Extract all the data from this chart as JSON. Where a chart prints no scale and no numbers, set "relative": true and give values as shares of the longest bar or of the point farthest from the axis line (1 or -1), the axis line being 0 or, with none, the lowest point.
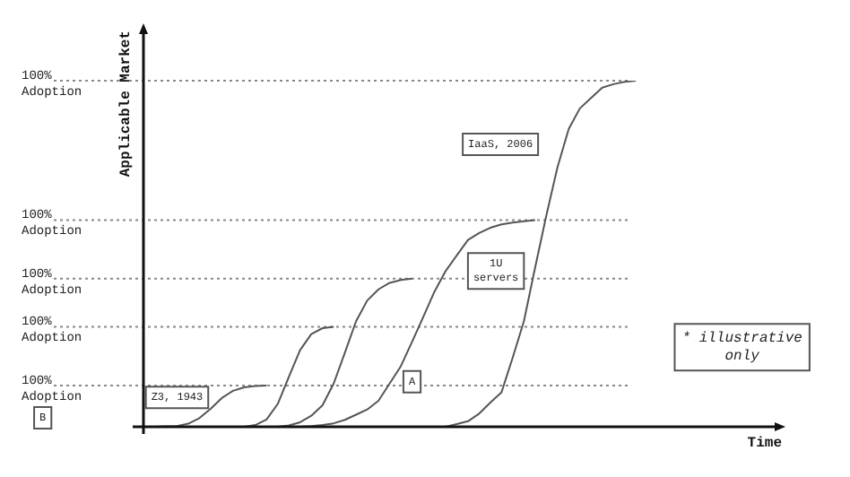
{
  "chart_data": {
    "type": "line",
    "relative": true,
    "xlabel": "Time",
    "ylabel": "Applicable Market",
    "legend": false,
    "marker": "none",
    "line_style": "solid",
    "categories": [
      null,
      null,
      null,
      null,
      null,
      null,
      null,
      null,
      null,
      null,
      null,
      null,
      null,
      null,
      null,
      null,
      null,
      null,
      null,
      null,
      null,
      null,
      null,
      null,
      null,
      null,
      null,
      null,
      null,
      null,
      null,
      null,
      null,
      null,
      null,
      null,
      null,
      null,
      null,
      null,
      null,
      null,
      null,
      null,
      null,
      null,
      null,
      null,
      null,
      null,
      null
    ],
    "series": [
      {
        "color": "#555555",
        "values": [
          null,
          0,
          0.001,
          0.002,
          0.009,
          0.025,
          0.052,
          0.083,
          0.104,
          0.114,
          0.118,
          0.119,
          null,
          null,
          null,
          null,
          null,
          null,
          null,
          null,
          null,
          null,
          null,
          null,
          null,
          null,
          null,
          null,
          null,
          null,
          null,
          null,
          null,
          null,
          null,
          null,
          null,
          null,
          null,
          null,
          null,
          null,
          null,
          null,
          null,
          null,
          null,
          null,
          null,
          null,
          null
        ]
      },
      {
        "color": "#555555",
        "values": [
          null,
          null,
          null,
          null,
          null,
          null,
          null,
          null,
          null,
          0,
          0.005,
          0.021,
          0.066,
          0.145,
          0.222,
          0.268,
          0.285,
          0.289,
          null,
          null,
          null,
          null,
          null,
          null,
          null,
          null,
          null,
          null,
          null,
          null,
          null,
          null,
          null,
          null,
          null,
          null,
          null,
          null,
          null,
          null,
          null,
          null,
          null,
          null,
          null,
          null,
          null,
          null,
          null,
          null,
          null
        ]
      },
      {
        "color": "#555555",
        "values": [
          null,
          null,
          null,
          null,
          null,
          null,
          null,
          null,
          null,
          null,
          null,
          null,
          0,
          0.004,
          0.013,
          0.032,
          0.062,
          0.125,
          0.214,
          0.305,
          0.365,
          0.397,
          0.416,
          0.424,
          0.428,
          null,
          null,
          null,
          null,
          null,
          null,
          null,
          null,
          null,
          null,
          null,
          null,
          null,
          null,
          null,
          null,
          null,
          null,
          null,
          null,
          null,
          null,
          null,
          null,
          null,
          null
        ]
      },
      {
        "color": "#555555",
        "values": [
          null,
          null,
          null,
          null,
          null,
          null,
          null,
          null,
          null,
          null,
          null,
          null,
          null,
          null,
          0,
          0.002,
          0.005,
          0.01,
          0.02,
          0.035,
          0.05,
          0.075,
          0.125,
          0.175,
          0.245,
          0.317,
          0.39,
          0.45,
          0.495,
          0.54,
          0.56,
          0.575,
          0.585,
          0.59,
          0.594,
          0.597,
          null,
          null,
          null,
          null,
          null,
          null,
          null,
          null,
          null,
          null,
          null,
          null,
          null,
          null,
          null
        ]
      },
      {
        "color": "#555555",
        "values": [
          null,
          null,
          null,
          null,
          null,
          null,
          null,
          null,
          null,
          null,
          null,
          null,
          null,
          null,
          null,
          null,
          null,
          null,
          null,
          null,
          null,
          null,
          null,
          null,
          null,
          null,
          null,
          0,
          0.008,
          0.016,
          0.038,
          0.07,
          0.1,
          0.2,
          0.305,
          0.46,
          0.61,
          0.75,
          0.86,
          0.92,
          0.95,
          0.98,
          0.99,
          0.997,
          1,
          null,
          null,
          null,
          null,
          null,
          null
        ]
      }
    ],
    "ref_lines": [
      {
        "axis": "y",
        "value": 1,
        "label": "100%\nAdoption",
        "color": "#888888",
        "line_style": "dotted"
      },
      {
        "axis": "y",
        "value": 0.597,
        "label": "100%\nAdoption",
        "color": "#888888",
        "line_style": "dotted"
      },
      {
        "axis": "y",
        "value": 0.428,
        "label": "100%\nAdoption",
        "color": "#888888",
        "line_style": "dotted"
      },
      {
        "axis": "y",
        "value": 0.289,
        "label": "100%\nAdoption",
        "color": "#888888",
        "line_style": "dotted"
      },
      {
        "axis": "y",
        "value": 0.119,
        "label": "100%\nAdoption",
        "color": "#888888",
        "line_style": "dotted"
      }
    ],
    "annotations": [
      "Z3, 1943",
      "1U\nservers",
      "IaaS, 2006",
      "A",
      "B",
      "* illustrative\nonly"
    ]
  }
}
